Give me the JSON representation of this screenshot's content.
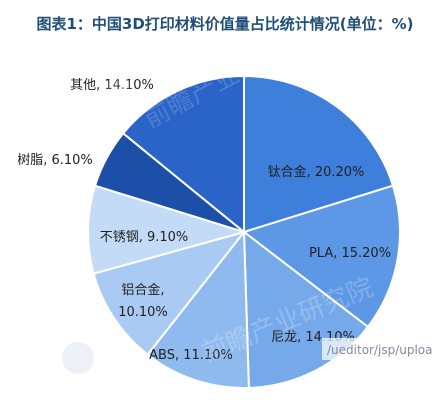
{
  "chart_data": {
    "type": "pie",
    "title": "图表1：中国3D打印材料价值量占比统计情况(单位：%)",
    "slices": [
      {
        "label": "钛合金, 20.20%",
        "category": "钛合金",
        "value": 20.2,
        "color": "#3d7fdb"
      },
      {
        "label": "PLA, 15.20%",
        "category": "PLA",
        "value": 15.2,
        "color": "#5d98e6"
      },
      {
        "label": "尼龙, 14.10%",
        "category": "尼龙",
        "value": 14.1,
        "color": "#76a9ea"
      },
      {
        "label": "ABS, 11.10%",
        "category": "ABS",
        "value": 11.1,
        "color": "#8fbaef"
      },
      {
        "label": "铝合金,\n10.10%",
        "category": "铝合金",
        "value": 10.1,
        "color": "#a9cbf3"
      },
      {
        "label": "不锈钢, 9.10%",
        "category": "不锈钢",
        "value": 9.1,
        "color": "#c3dbf7"
      },
      {
        "label": "树脂, 6.10%",
        "category": "树脂",
        "value": 6.1,
        "color": "#1c4fa8"
      },
      {
        "label": "其他, 14.10%",
        "category": "其他",
        "value": 14.1,
        "color": "#2a64c8"
      }
    ]
  },
  "watermark": {
    "text": "前瞻产业研究院",
    "url_text": "/ueditor/jsp/uploa"
  }
}
